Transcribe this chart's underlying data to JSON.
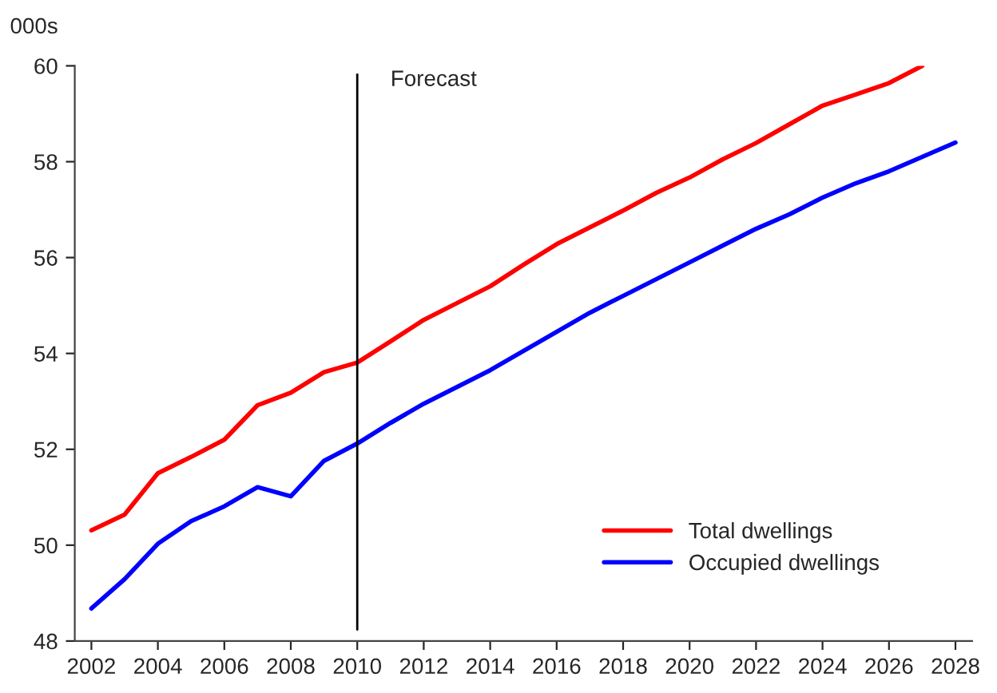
{
  "chart_data": {
    "type": "line",
    "ylabel": "000s",
    "x": [
      2002,
      2003,
      2004,
      2005,
      2006,
      2007,
      2008,
      2009,
      2010,
      2011,
      2012,
      2013,
      2014,
      2015,
      2016,
      2017,
      2018,
      2019,
      2020,
      2021,
      2022,
      2023,
      2024,
      2025,
      2026,
      2027,
      2028
    ],
    "series": [
      {
        "name": "Total dwellings",
        "color": "#ff0000",
        "values": [
          50.31,
          50.64,
          51.5,
          51.84,
          52.2,
          52.92,
          53.18,
          53.61,
          53.81,
          54.25,
          54.7,
          55.05,
          55.4,
          55.85,
          56.28,
          56.63,
          56.98,
          57.35,
          57.67,
          58.05,
          58.39,
          58.78,
          59.17,
          59.4,
          59.64,
          60.0,
          null
        ]
      },
      {
        "name": "Occupied dwellings",
        "color": "#0000ff",
        "values": [
          48.68,
          49.29,
          50.03,
          50.5,
          50.81,
          51.21,
          51.02,
          51.76,
          52.12,
          52.55,
          52.95,
          53.3,
          53.65,
          54.05,
          54.45,
          54.85,
          55.2,
          55.55,
          55.9,
          56.25,
          56.6,
          56.9,
          57.25,
          57.55,
          57.8,
          58.1,
          58.4
        ]
      }
    ],
    "xlim": [
      2001.5,
      2028.5
    ],
    "xticks": [
      2002,
      2004,
      2006,
      2008,
      2010,
      2012,
      2014,
      2016,
      2018,
      2020,
      2022,
      2024,
      2026,
      2028
    ],
    "ylim": [
      48,
      60
    ],
    "yticks": [
      48,
      50,
      52,
      54,
      56,
      58,
      60
    ],
    "ref_lines": [
      {
        "axis": "x",
        "value": 2010,
        "label": "Forecast",
        "color": "#000000"
      }
    ],
    "grid": false,
    "legend": "bottom right",
    "line_style": "solid",
    "marker": "none"
  }
}
